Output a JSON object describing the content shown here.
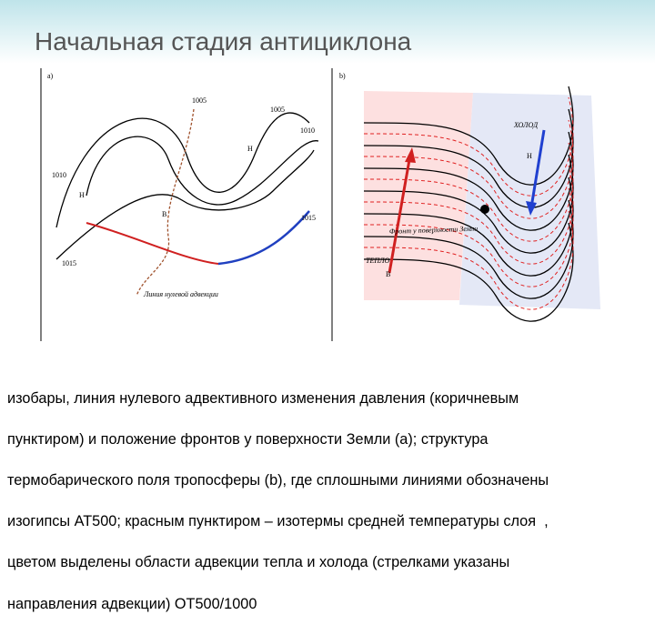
{
  "header": {
    "title": "Начальная стадия антициклона"
  },
  "panel_a": {
    "label": "а)",
    "isobars": [
      "1005",
      "1005",
      "1010",
      "1010",
      "1015",
      "1015"
    ],
    "pressure": [
      "Н",
      "Н",
      "В"
    ],
    "zero_line": "Линия нулевой адвекции"
  },
  "panel_b": {
    "label": "b)",
    "cold": "ХОЛОД",
    "cold_center": "Н",
    "warm": "ТЕПЛО",
    "warm_center": "В",
    "front": "Фронт у поверхности Земли"
  },
  "caption": {
    "lines": [
      "изобары, линия нулевого адвективного изменения давления (коричневым",
      "пунктиром) и положение фронтов у поверхности Земли (а); структура",
      "термобарического поля тропосферы (b), где сплошными линиями обозначены",
      "изогипсы АТ500; красным пунктиром – изотермы средней температуры слоя  ,",
      "цветом выделены области адвекции тепла и холода (стрелками указаны",
      "направления адвекции) ОТ500/1000"
    ]
  }
}
